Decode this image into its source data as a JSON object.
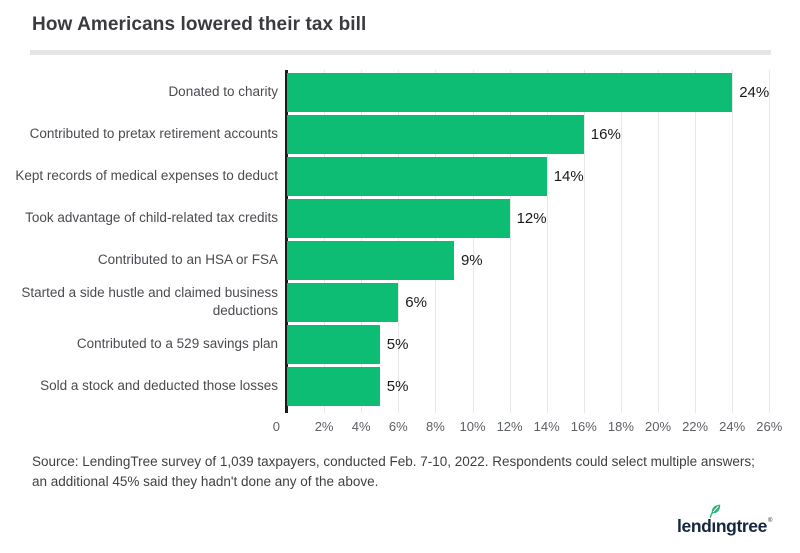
{
  "title": "How Americans lowered their tax bill",
  "source": "Source: LendingTree survey of 1,039 taxpayers, conducted Feb. 7-10, 2022. Respondents could select multiple answers; an additional 45% said they hadn't done any of the above.",
  "logo": {
    "brand": "lendingtree",
    "part_before_i": "lend",
    "dotless_i": "ı",
    "part_after_i": "ngtree",
    "registered_mark": "®",
    "navy": "#15273e",
    "leaf_green": "#27b473"
  },
  "chart_data": {
    "type": "bar",
    "orientation": "horizontal",
    "title": "How Americans lowered their tax bill",
    "categories": [
      "Donated to charity",
      "Contributed to pretax retirement accounts",
      "Kept records of medical expenses to deduct",
      "Took advantage of child-related tax credits",
      "Contributed to an HSA or FSA",
      "Started a side hustle and claimed business deductions",
      "Contributed to a 529 savings plan",
      "Sold a stock and deducted those losses"
    ],
    "values": [
      24,
      16,
      14,
      12,
      9,
      6,
      5,
      5
    ],
    "value_labels": [
      "24%",
      "16%",
      "14%",
      "12%",
      "9%",
      "6%",
      "5%",
      "5%"
    ],
    "x_tick_values": [
      0,
      2,
      4,
      6,
      8,
      10,
      12,
      14,
      16,
      18,
      20,
      22,
      24,
      26
    ],
    "x_tick_labels": [
      "0",
      "2%",
      "4%",
      "6%",
      "8%",
      "10%",
      "12%",
      "14%",
      "16%",
      "18%",
      "20%",
      "22%",
      "24%",
      "26%"
    ],
    "xlim": [
      0,
      26.7
    ],
    "xlabel": "",
    "ylabel": "",
    "grid": true,
    "legend": false,
    "bar_color": "#0ebd74",
    "axis_color": "#1b1b1b"
  }
}
